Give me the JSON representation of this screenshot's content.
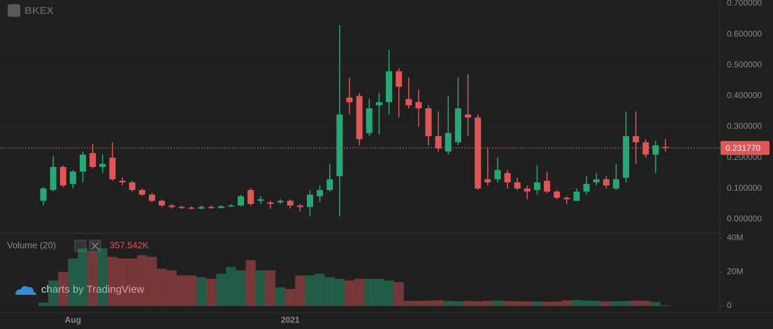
{
  "chart_data": {
    "type": "candlestick",
    "watermark": "BKEX",
    "attribution": "charts by TradingView",
    "up_color": "#25a776",
    "down_color": "#e05656",
    "categories": [
      null,
      null,
      null,
      "Aug",
      null,
      null,
      null,
      null,
      null,
      null,
      null,
      null,
      null,
      null,
      null,
      null,
      null,
      null,
      null,
      null,
      null,
      null,
      null,
      null,
      null,
      "2021",
      null,
      null,
      null,
      null,
      null,
      null,
      null,
      null,
      null,
      null,
      null,
      null,
      null,
      null,
      null,
      null,
      null,
      null,
      null,
      null,
      null,
      null,
      null,
      null,
      null,
      null,
      null,
      null,
      null,
      null,
      null,
      null,
      null,
      null,
      null,
      null,
      null,
      null
    ],
    "open": [
      0.06,
      0.095,
      0.17,
      0.115,
      0.155,
      0.215,
      0.17,
      0.2,
      0.125,
      0.12,
      0.095,
      0.08,
      0.06,
      0.045,
      0.04,
      0.038,
      0.035,
      0.04,
      0.037,
      0.042,
      0.045,
      0.095,
      0.06,
      0.055,
      0.055,
      0.06,
      0.045,
      0.04,
      0.075,
      0.095,
      0.14,
      0.395,
      0.4,
      0.28,
      0.37,
      0.38,
      0.48,
      0.39,
      0.38,
      0.36,
      0.27,
      0.22,
      0.25,
      0.34,
      0.33,
      0.13,
      0.13,
      0.15,
      0.12,
      0.1,
      0.095,
      0.125,
      0.09,
      0.07,
      0.06,
      0.09,
      0.12,
      0.13,
      0.1,
      0.135,
      0.27,
      0.25,
      0.21,
      0.235
    ],
    "high": [
      0.105,
      0.205,
      0.175,
      0.16,
      0.22,
      0.245,
      0.21,
      0.25,
      0.135,
      0.125,
      0.1,
      0.085,
      0.065,
      0.05,
      0.045,
      0.042,
      0.045,
      0.045,
      0.046,
      0.05,
      0.08,
      0.1,
      0.075,
      0.06,
      0.065,
      0.065,
      0.05,
      0.095,
      0.11,
      0.18,
      0.63,
      0.46,
      0.41,
      0.39,
      0.41,
      0.55,
      0.49,
      0.46,
      0.42,
      0.37,
      0.35,
      0.4,
      0.46,
      0.47,
      0.34,
      0.23,
      0.2,
      0.16,
      0.135,
      0.11,
      0.175,
      0.155,
      0.095,
      0.075,
      0.1,
      0.14,
      0.15,
      0.14,
      0.18,
      0.35,
      0.35,
      0.26,
      0.255,
      0.26
    ],
    "low": [
      0.045,
      0.09,
      0.105,
      0.1,
      0.12,
      0.165,
      0.15,
      0.125,
      0.11,
      0.09,
      0.075,
      0.055,
      0.04,
      0.035,
      0.034,
      0.032,
      0.033,
      0.034,
      0.035,
      0.04,
      0.042,
      0.045,
      0.05,
      0.035,
      0.05,
      0.035,
      0.025,
      0.01,
      0.055,
      0.09,
      0.01,
      0.34,
      0.24,
      0.27,
      0.275,
      0.34,
      0.33,
      0.36,
      0.3,
      0.24,
      0.22,
      0.21,
      0.24,
      0.27,
      0.095,
      0.11,
      0.12,
      0.1,
      0.095,
      0.065,
      0.08,
      0.085,
      0.065,
      0.05,
      0.06,
      0.08,
      0.11,
      0.1,
      0.095,
      0.12,
      0.18,
      0.2,
      0.15,
      0.22
    ],
    "close": [
      0.1,
      0.17,
      0.11,
      0.155,
      0.21,
      0.17,
      0.18,
      0.13,
      0.12,
      0.095,
      0.08,
      0.06,
      0.045,
      0.04,
      0.038,
      0.035,
      0.04,
      0.037,
      0.042,
      0.045,
      0.075,
      0.05,
      0.065,
      0.05,
      0.06,
      0.045,
      0.04,
      0.08,
      0.095,
      0.13,
      0.34,
      0.38,
      0.26,
      0.36,
      0.38,
      0.48,
      0.43,
      0.37,
      0.36,
      0.27,
      0.23,
      0.28,
      0.36,
      0.33,
      0.1,
      0.12,
      0.16,
      0.12,
      0.1,
      0.09,
      0.12,
      0.09,
      0.07,
      0.065,
      0.09,
      0.115,
      0.13,
      0.11,
      0.13,
      0.27,
      0.25,
      0.21,
      0.24,
      0.23177
    ],
    "last_price_label": "0.231770",
    "ylim": [
      -0.0385,
      0.7113
    ],
    "yticks": [
      {
        "value": 0,
        "label": "0.000000"
      },
      {
        "value": 0.1,
        "label": "0.100000"
      },
      {
        "value": 0.2,
        "label": "0.200000"
      },
      {
        "value": 0.3,
        "label": "0.300000"
      },
      {
        "value": 0.4,
        "label": "0.400000"
      },
      {
        "value": 0.5,
        "label": "0.500000"
      },
      {
        "value": 0.6,
        "label": "0.600000"
      },
      {
        "value": 0.7,
        "label": "0.700000"
      }
    ],
    "grid": true,
    "volume": {
      "name": "Volume (20)",
      "values": [
        2000000,
        15000000,
        20000000,
        28000000,
        34000000,
        32000000,
        34000000,
        29000000,
        28000000,
        28000000,
        30000000,
        29000000,
        22000000,
        21000000,
        18000000,
        18000000,
        17000000,
        16000000,
        19000000,
        23000000,
        21000000,
        27000000,
        21000000,
        21000000,
        11000000,
        10000000,
        18000000,
        18000000,
        19000000,
        17000000,
        16000000,
        15000000,
        16000000,
        16000000,
        16000000,
        15000000,
        14000000,
        3000000,
        3000000,
        3200000,
        3400000,
        3000000,
        2800000,
        2900000,
        2700000,
        3000000,
        3200000,
        2900000,
        2800000,
        2600000,
        2700000,
        2500000,
        2600000,
        3300000,
        3500000,
        3200000,
        3000000,
        2600000,
        2800000,
        2900000,
        3200000,
        3000000,
        2400000,
        357542
      ],
      "last_label": "357.542K",
      "ylim": [
        -4100000,
        41200000
      ],
      "yticks": [
        0,
        {
          "value": 20000000,
          "label": "20M"
        },
        {
          "value": 40000000,
          "label": "40M"
        }
      ]
    }
  }
}
